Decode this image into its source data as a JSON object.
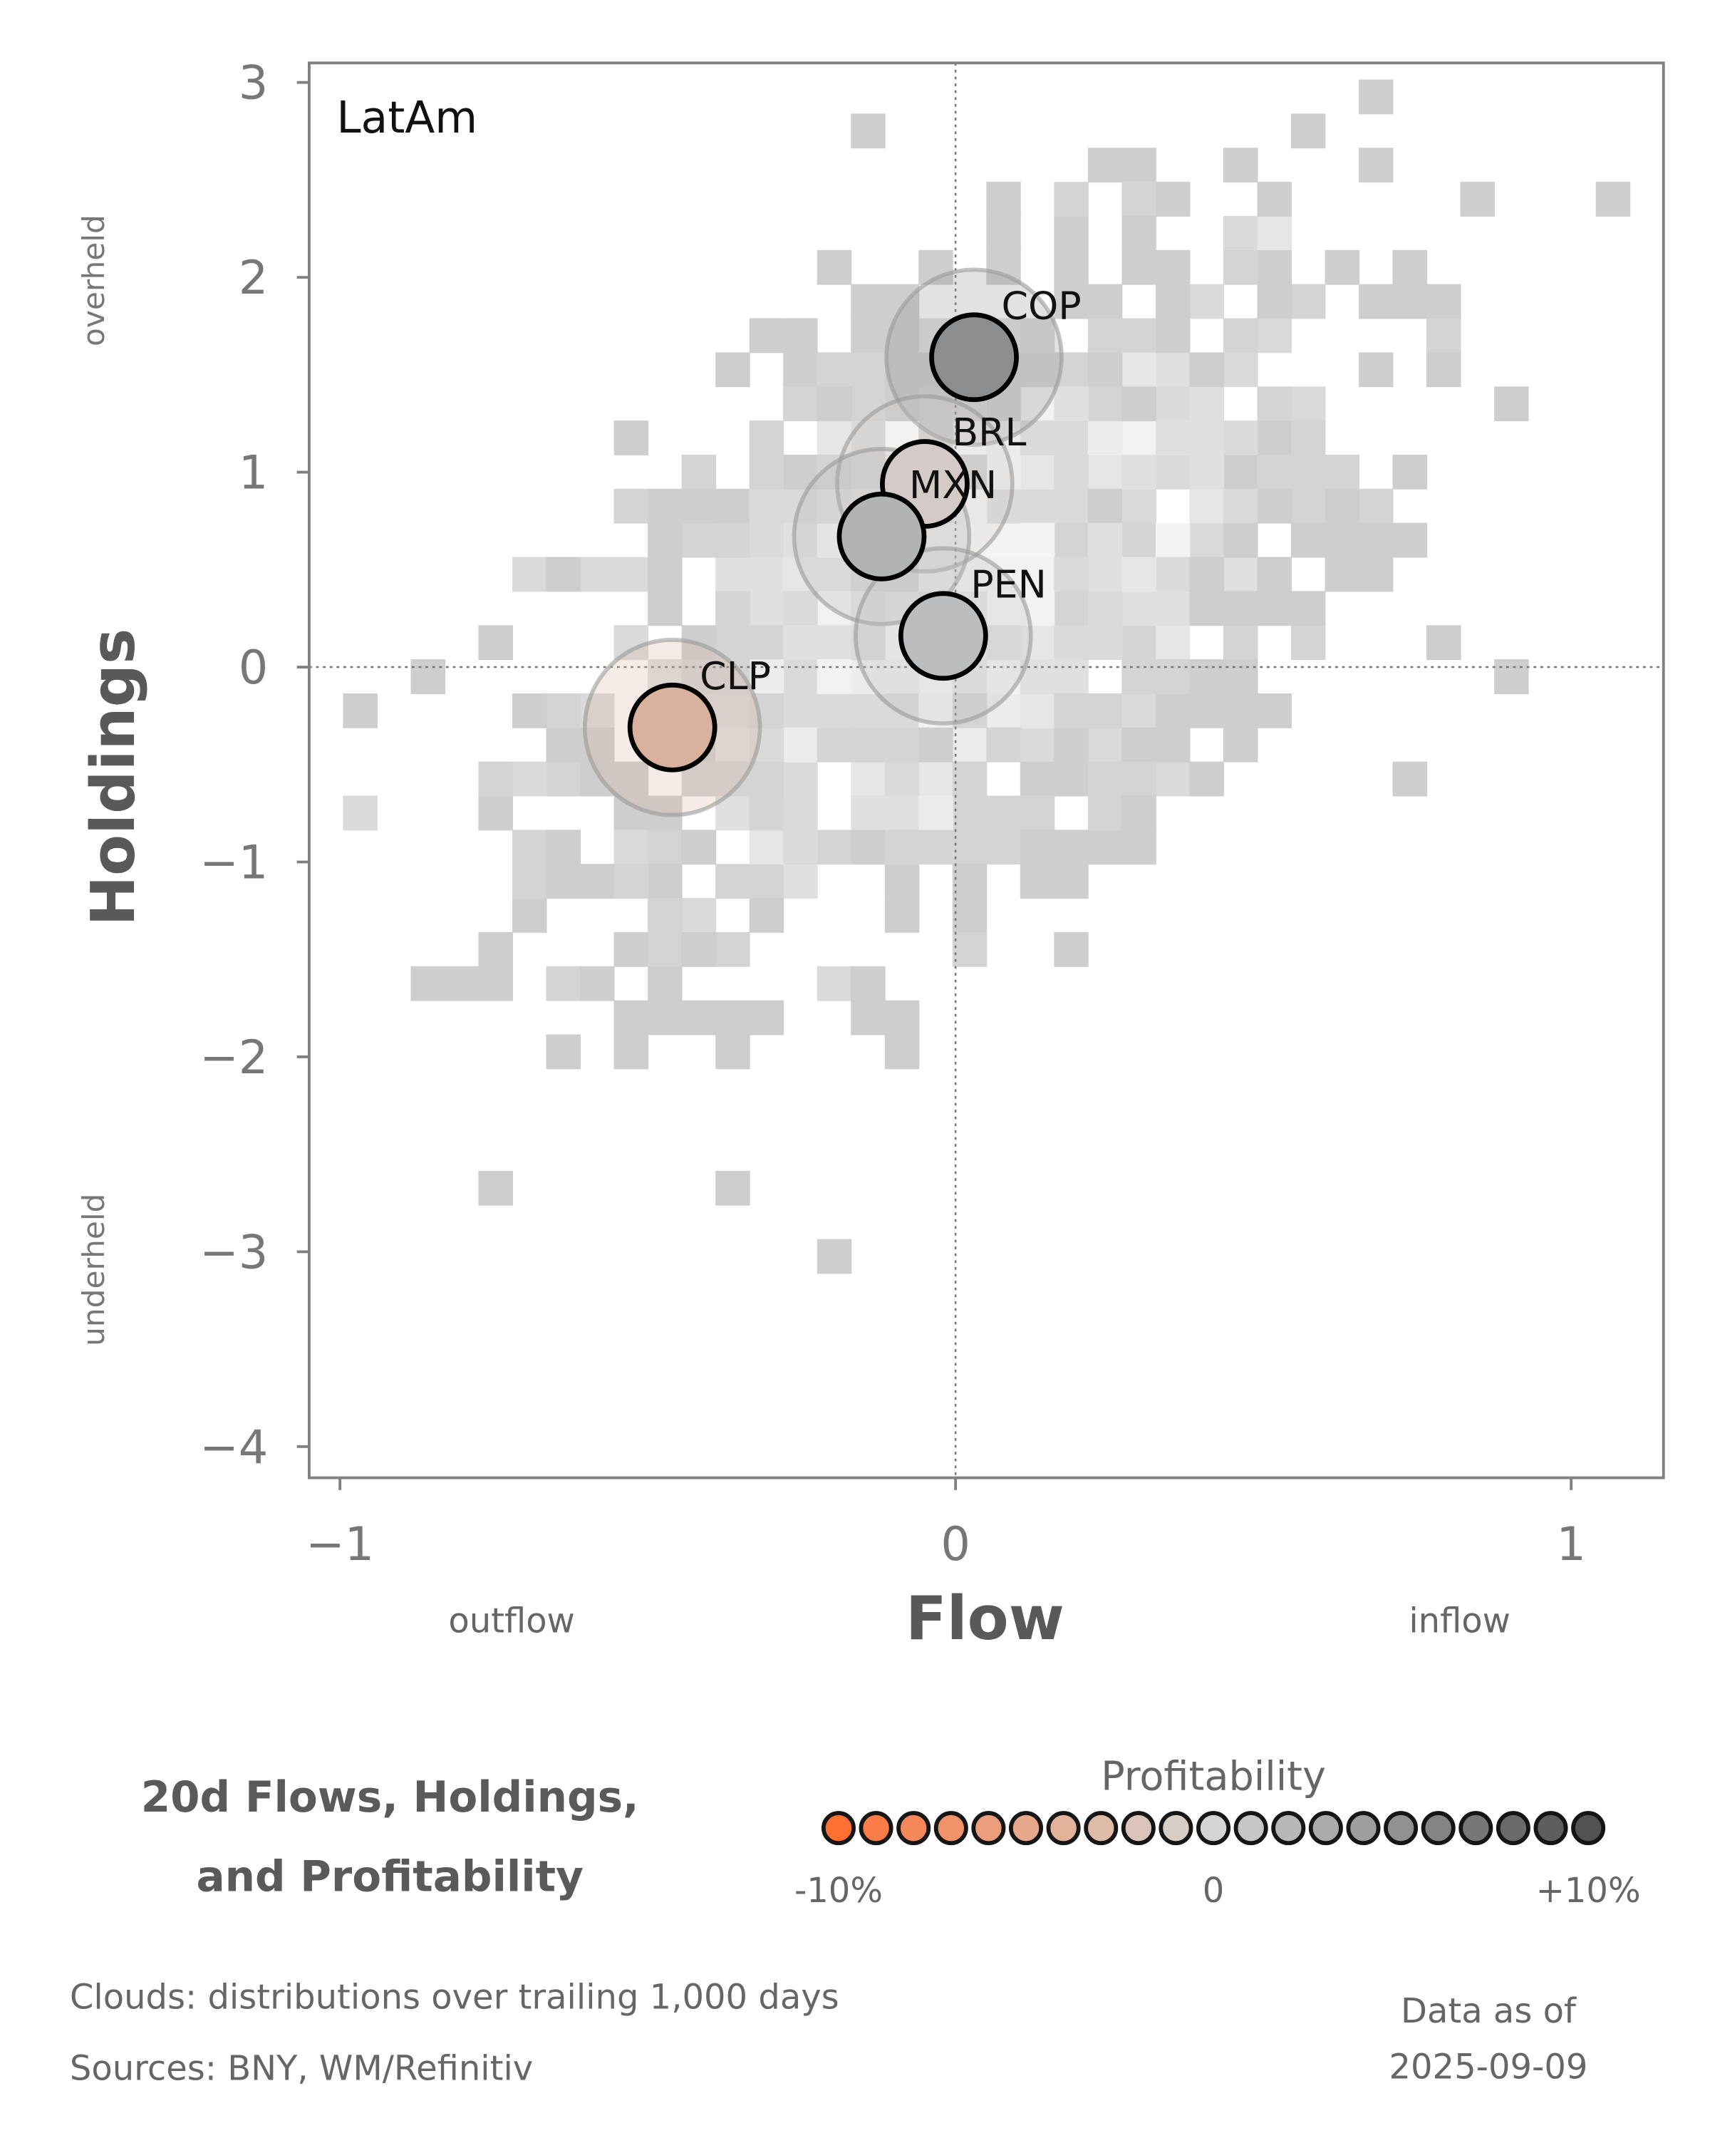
{
  "chart_data": {
    "type": "scatter",
    "panel_label": "LatAm",
    "xlabel": "Flow",
    "ylabel": "Holdings",
    "x_left_note": "outflow",
    "x_right_note": "inflow",
    "y_top_note": "overheld",
    "y_bottom_note": "underheld",
    "xlim": [
      -1.05,
      1.15
    ],
    "ylim": [
      -4.16,
      3.1
    ],
    "x_ticks": [
      {
        "v": -1,
        "label": "−1"
      },
      {
        "v": 0,
        "label": "0"
      },
      {
        "v": 1,
        "label": "1"
      }
    ],
    "y_ticks": [
      {
        "v": 3,
        "label": "3"
      },
      {
        "v": 2,
        "label": "2"
      },
      {
        "v": 1,
        "label": "1"
      },
      {
        "v": 0,
        "label": "0"
      },
      {
        "v": -1,
        "label": "−1"
      },
      {
        "v": -2,
        "label": "−2"
      },
      {
        "v": -3,
        "label": "−3"
      },
      {
        "v": -4,
        "label": "−4"
      }
    ],
    "reference_lines": {
      "x": 0,
      "y": 0
    },
    "points": [
      {
        "name": "COP",
        "flow": 0.03,
        "holdings": 1.59,
        "profitability": 5,
        "color": "#8c8d8f"
      },
      {
        "name": "BRL",
        "flow": -0.05,
        "holdings": 0.94,
        "profitability": -1,
        "color": "#d4cbc8"
      },
      {
        "name": "MXN",
        "flow": -0.12,
        "holdings": 0.67,
        "profitability": 1.5,
        "color": "#b2b4b3"
      },
      {
        "name": "PEN",
        "flow": -0.02,
        "holdings": 0.16,
        "profitability": 1,
        "color": "#bbbdbf"
      },
      {
        "name": "CLP",
        "flow": -0.46,
        "holdings": -0.31,
        "profitability": -3,
        "color": "#d9b29f"
      }
    ],
    "cloud_note": "Clouds:  distributions over trailing 1,000 days"
  },
  "title_line1": "20d Flows, Holdings,",
  "title_line2": "and Profitability",
  "legend": {
    "title": "Profitability",
    "min_label": "-10%",
    "mid_label": "0",
    "max_label": "+10%",
    "colors": [
      "#ff7033",
      "#fb7c47",
      "#f5875a",
      "#f0936b",
      "#eb9e7c",
      "#e7a88b",
      "#e3b29b",
      "#dfbbaa",
      "#dbc4b9",
      "#d6cdc7",
      "#d4d4d4",
      "#c6c6c6",
      "#b8b8b8",
      "#ababab",
      "#9e9e9e",
      "#919191",
      "#848484",
      "#777777",
      "#6a6a6a",
      "#5e5e5e",
      "#525252"
    ]
  },
  "footer": {
    "clouds": "Clouds:  distributions over trailing 1,000 days",
    "sources": "Sources:  BNY, WM/Refinitiv",
    "asof_label": "Data as of",
    "asof_date": "2025-09-09"
  }
}
